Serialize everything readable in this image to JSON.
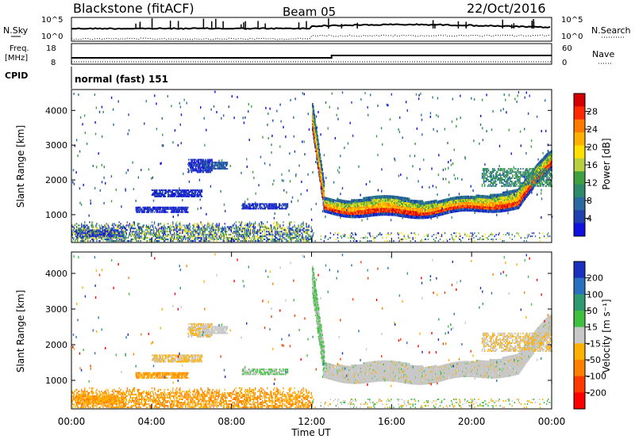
{
  "header": {
    "station": "Blackstone (fitACF)",
    "beam": "Beam 05",
    "date": "22/Oct/2016"
  },
  "status_panels": {
    "nsky_label": "N.Sky",
    "nsearch_label": "N.Search",
    "nsky_ticks": [
      "10^5",
      "10^0"
    ],
    "nsearch_ticks": [
      "10^5",
      "10^0"
    ],
    "freq_label_line1": "Freq.",
    "freq_label_line2": "[MHz]",
    "freq_ticks": [
      "18",
      "8"
    ],
    "nave_label": "Nave",
    "nave_ticks": [
      "60",
      "0"
    ],
    "cpid_label": "CPID",
    "cpid_text": "normal (fast) 151"
  },
  "chart_data": [
    {
      "type": "heatmap",
      "name": "power",
      "ylabel": "Slant Range [km]",
      "yticks": [
        1000,
        2000,
        3000,
        4000
      ],
      "ylim": [
        200,
        4600
      ],
      "xlim_hours": [
        0,
        24
      ],
      "colorbar": {
        "label": "Power [dB]",
        "ticks": [
          "28",
          "24",
          "20",
          "16",
          "12",
          "8",
          "4"
        ],
        "colors": [
          "#d40000",
          "#ff2a00",
          "#ff7a00",
          "#ffb000",
          "#ffe000",
          "#b8d040",
          "#40a040",
          "#2f8a6a",
          "#2a6aa0",
          "#2040b0",
          "#1010e0"
        ]
      },
      "features": [
        {
          "from_hour": 12.0,
          "to_hour": 23.9,
          "range_km": [
            900,
            1500
          ],
          "level_db": "12-28",
          "note_text": ""
        }
      ]
    },
    {
      "type": "heatmap",
      "name": "velocity",
      "ylabel": "Slant Range [km]",
      "yticks": [
        1000,
        2000,
        3000,
        4000
      ],
      "ylim": [
        200,
        4600
      ],
      "xlim_hours": [
        0,
        24
      ],
      "xlabel": "Time UT",
      "xticks": [
        "00:00",
        "04:00",
        "08:00",
        "12:00",
        "16:00",
        "20:00",
        "00:00"
      ],
      "colorbar": {
        "label": "Velocity [m s⁻¹]",
        "ticks": [
          "200",
          "100",
          "50",
          "15",
          "-15",
          "-50",
          "-100",
          "-200"
        ],
        "colors": [
          "#1a30c0",
          "#2a70c0",
          "#2f9a70",
          "#40c040",
          "#c8c8c8",
          "#ffb000",
          "#ff8000",
          "#ff3a00",
          "#ff0000"
        ]
      }
    }
  ]
}
